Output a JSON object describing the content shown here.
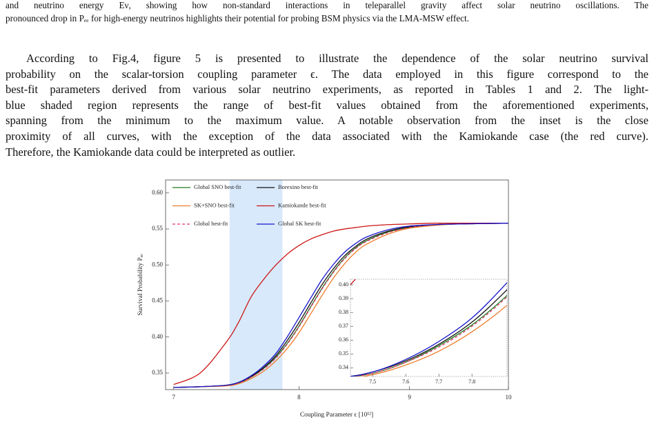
{
  "caption": {
    "lines": [
      "and neutrino energy Eν, showing how non-standard interactions in teleparallel gravity affect solar neutrino oscillations. The",
      "pronounced drop in Pₑₑ for high-energy neutrinos highlights their potential for probing BSM physics via the LMA-MSW effect."
    ]
  },
  "paragraph": {
    "lines": [
      "According to Fig.4, figure 5 is presented to illustrate the dependence of the solar neutrino survival",
      "probability on the scalar-torsion coupling parameter ϵ. The data employed in this figure correspond to the",
      "best-fit parameters derived from various solar neutrino experiments, as reported in Tables 1 and 2. The light-",
      "blue shaded region represents the range of best-fit values obtained from the aforementioned experiments,",
      "spanning from the minimum to the maximum value. A notable observation from the inset is the close",
      "proximity of all curves, with the exception of the data associated with the Kamiokande case (the red curve).",
      "Therefore, the Kamiokande data could be interpreted as outlier."
    ]
  },
  "chart_data": {
    "type": "line",
    "xlabel": "Coupling Parameter ϵ [10¹²]",
    "ylabel": "Survival Probability Pₑₑ",
    "xscale": "log",
    "xlim": [
      6.94,
      10
    ],
    "xticks": [
      7,
      8,
      9,
      10
    ],
    "ylim": [
      0.327,
      0.618
    ],
    "yticks": [
      0.35,
      {
        "value": 0.4,
        "label": "0.40"
      },
      0.45,
      {
        "value": 0.5,
        "label": "0.50"
      },
      0.55,
      {
        "value": 0.6,
        "label": "0.60"
      }
    ],
    "shaded_region": [
      7.43,
      7.86
    ],
    "shaded_color": "#d8e9fb",
    "x": [
      7,
      7.2,
      7.4,
      7.5,
      7.6,
      7.7,
      7.8,
      7.9,
      8,
      8.1,
      8.2,
      8.3,
      8.4,
      8.5,
      8.6,
      8.8,
      9,
      9.25,
      9.5,
      10
    ],
    "series": [
      {
        "name": "Global SNO best-fit",
        "color": "#1f7a1f",
        "values": [
          0.33,
          0.331,
          0.333,
          0.336,
          0.344,
          0.356,
          0.371,
          0.391,
          0.415,
          0.442,
          0.468,
          0.491,
          0.51,
          0.524,
          0.534,
          0.546,
          0.552,
          0.556,
          0.557,
          0.558
        ]
      },
      {
        "name": "Borexino best-fit",
        "color": "#111111",
        "values": [
          0.33,
          0.331,
          0.333,
          0.337,
          0.345,
          0.357,
          0.373,
          0.395,
          0.42,
          0.447,
          0.473,
          0.495,
          0.513,
          0.526,
          0.536,
          0.547,
          0.553,
          0.556,
          0.557,
          0.558
        ]
      },
      {
        "name": "SK+SNO best-fit",
        "color": "#ee7d2b",
        "values": [
          0.33,
          0.331,
          0.332,
          0.335,
          0.342,
          0.352,
          0.366,
          0.384,
          0.406,
          0.432,
          0.458,
          0.482,
          0.502,
          0.518,
          0.529,
          0.543,
          0.551,
          0.555,
          0.557,
          0.558
        ]
      },
      {
        "name": "Kamiokande best-fit",
        "color": "#cc1414",
        "values": [
          0.334,
          0.35,
          0.392,
          0.42,
          0.455,
          0.479,
          0.499,
          0.515,
          0.527,
          0.536,
          0.542,
          0.547,
          0.55,
          0.552,
          0.554,
          0.556,
          0.557,
          0.558,
          0.558,
          0.558
        ]
      },
      {
        "name": "Global best-fit",
        "color": "#e0306a",
        "dashed": true,
        "values": [
          0.33,
          0.331,
          0.333,
          0.336,
          0.344,
          0.355,
          0.37,
          0.39,
          0.414,
          0.441,
          0.467,
          0.49,
          0.509,
          0.523,
          0.533,
          0.545,
          0.552,
          0.556,
          0.557,
          0.558
        ]
      },
      {
        "name": "Global SK best-fit",
        "color": "#1414cc",
        "values": [
          0.33,
          0.331,
          0.333,
          0.337,
          0.346,
          0.359,
          0.376,
          0.4,
          0.427,
          0.454,
          0.48,
          0.501,
          0.518,
          0.53,
          0.539,
          0.549,
          0.554,
          0.556,
          0.557,
          0.558
        ]
      }
    ],
    "inset": {
      "xlim": [
        7.433,
        7.906
      ],
      "xticks": [
        7.5,
        7.6,
        7.7,
        7.8
      ],
      "ylim": [
        0.3337,
        0.404
      ],
      "yticks": [
        0.34,
        0.35,
        0.36,
        0.37,
        0.38,
        0.39,
        {
          "value": 0.4,
          "label": "0.40"
        }
      ]
    }
  }
}
